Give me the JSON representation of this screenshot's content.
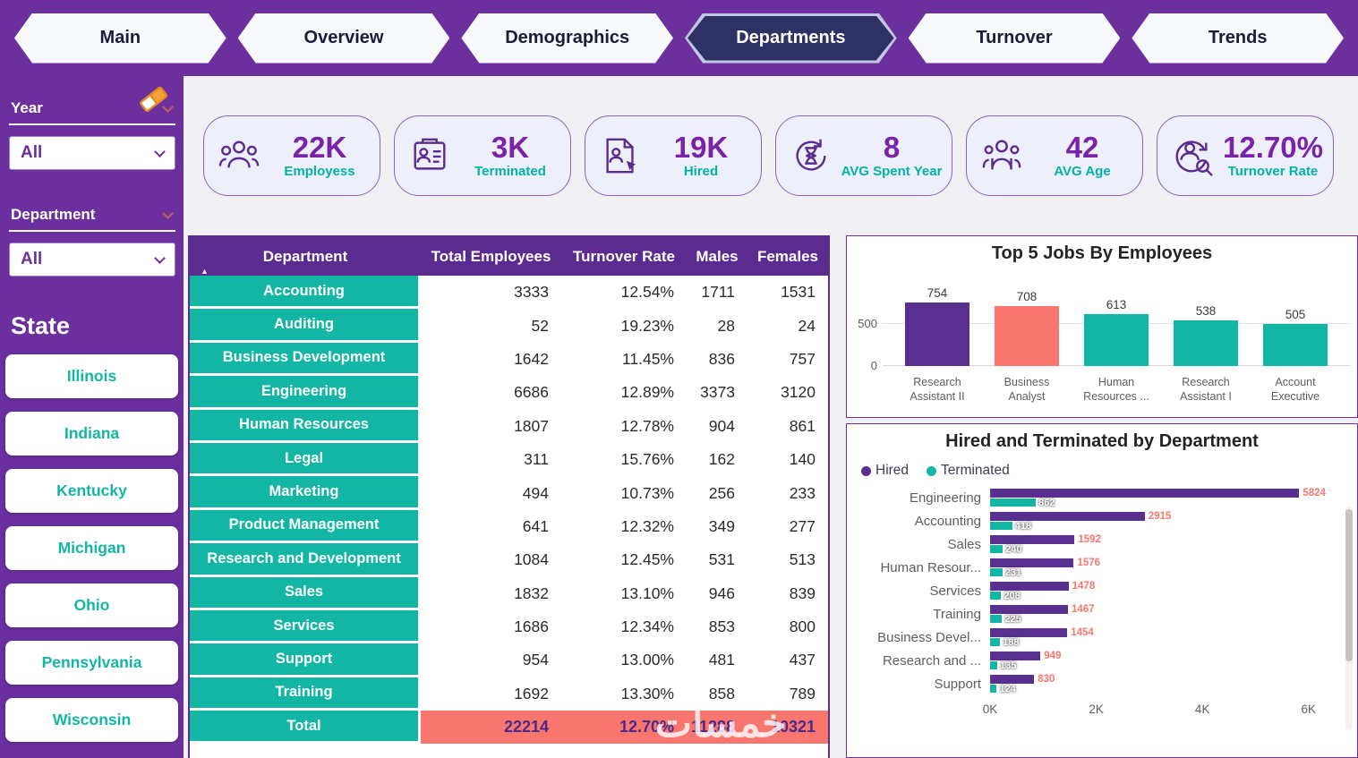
{
  "colors": {
    "purple_bg": "#6b2f9e",
    "purple_dark": "#5b2b8f",
    "navy_active": "#2e3163",
    "teal": "#13b6a5",
    "salmon": "#f8766d"
  },
  "nav": {
    "items": [
      {
        "label": "Main",
        "active": false
      },
      {
        "label": "Overview",
        "active": false
      },
      {
        "label": "Demographics",
        "active": false
      },
      {
        "label": "Departments",
        "active": true
      },
      {
        "label": "Turnover",
        "active": false
      },
      {
        "label": "Trends",
        "active": false
      }
    ]
  },
  "sidebar": {
    "filters": [
      {
        "label": "Year",
        "value": "All"
      },
      {
        "label": "Department",
        "value": "All"
      }
    ],
    "state": {
      "label": "State",
      "items": [
        "Illinois",
        "Indiana",
        "Kentucky",
        "Michigan",
        "Ohio",
        "Pennsylvania",
        "Wisconsin"
      ]
    }
  },
  "kpis": [
    {
      "value": "22K",
      "label": "Employess",
      "icon": "employees-icon"
    },
    {
      "value": "3K",
      "label": "Terminated",
      "icon": "terminated-icon"
    },
    {
      "value": "19K",
      "label": "Hired",
      "icon": "hired-icon"
    },
    {
      "value": "8",
      "label": "AVG Spent Year",
      "icon": "avg-spent-year-icon"
    },
    {
      "value": "42",
      "label": "AVG Age",
      "icon": "avg-age-icon"
    },
    {
      "value": "12.70%",
      "label": "Turnover Rate",
      "icon": "turnover-rate-icon"
    }
  ],
  "table": {
    "columns": [
      "Department",
      "Total Employees",
      "Turnover Rate",
      "Males",
      "Females"
    ],
    "rows": [
      [
        "Accounting",
        "3333",
        "12.54%",
        "1711",
        "1531"
      ],
      [
        "Auditing",
        "52",
        "19.23%",
        "28",
        "24"
      ],
      [
        "Business Development",
        "1642",
        "11.45%",
        "836",
        "757"
      ],
      [
        "Engineering",
        "6686",
        "12.89%",
        "3373",
        "3120"
      ],
      [
        "Human Resources",
        "1807",
        "12.78%",
        "904",
        "861"
      ],
      [
        "Legal",
        "311",
        "15.76%",
        "162",
        "140"
      ],
      [
        "Marketing",
        "494",
        "10.73%",
        "256",
        "233"
      ],
      [
        "Product Management",
        "641",
        "12.32%",
        "349",
        "277"
      ],
      [
        "Research and Development",
        "1084",
        "12.45%",
        "531",
        "513"
      ],
      [
        "Sales",
        "1832",
        "13.10%",
        "946",
        "839"
      ],
      [
        "Services",
        "1686",
        "12.34%",
        "853",
        "800"
      ],
      [
        "Support",
        "954",
        "13.00%",
        "481",
        "437"
      ],
      [
        "Training",
        "1692",
        "13.30%",
        "858",
        "789"
      ]
    ],
    "total_row": [
      "Total",
      "22214",
      "12.70%",
      "11288",
      "10321"
    ]
  },
  "chart_data": [
    {
      "type": "bar",
      "title": "Top 5 Jobs By Employees",
      "categories": [
        "Research Assistant II",
        "Business Analyst",
        "Human Resources ...",
        "Research Assistant I",
        "Account Executive"
      ],
      "values": [
        754,
        708,
        613,
        538,
        505
      ],
      "colors": [
        "#59308f",
        "#f8766d",
        "#13b6a5",
        "#13b6a5",
        "#13b6a5"
      ],
      "ylim": [
        0,
        800
      ],
      "yticks": [
        0,
        500
      ],
      "grid": true,
      "legend": false
    },
    {
      "type": "bar",
      "orientation": "horizontal",
      "title": "Hired and Terminated by Department",
      "categories": [
        "Engineering",
        "Accounting",
        "Sales",
        "Human Resour...",
        "Services",
        "Training",
        "Business Devel...",
        "Research and ...",
        "Support"
      ],
      "series": [
        {
          "name": "Hired",
          "color": "#59308f",
          "values": [
            5824,
            2915,
            1592,
            1576,
            1478,
            1467,
            1454,
            949,
            830
          ]
        },
        {
          "name": "Terminated",
          "color": "#13b6a5",
          "values": [
            862,
            418,
            240,
            231,
            208,
            225,
            188,
            135,
            124
          ]
        }
      ],
      "xticks": [
        "0K",
        "2K",
        "4K",
        "6K"
      ],
      "xlim": [
        0,
        6000
      ],
      "legend_position": "top-left"
    }
  ],
  "watermark": "خمسات"
}
